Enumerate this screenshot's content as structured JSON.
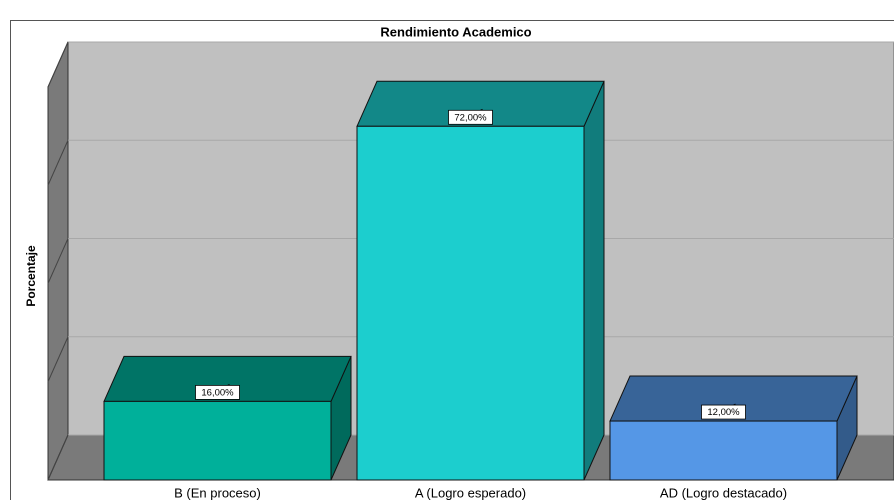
{
  "chart_data": {
    "type": "bar3d",
    "title": "Rendimiento Academico",
    "y_label": "Porcentaje",
    "categories": [
      "B (En proceso)",
      "A (Logro esperado)",
      "AD (Logro destacado)"
    ],
    "values": [
      16,
      72,
      12
    ],
    "value_labels": [
      "16,00%",
      "72,00%",
      "12,00%"
    ],
    "colors": [
      "#00b09a",
      "#1ccece",
      "#5597e6"
    ],
    "ylim": [
      0,
      80
    ],
    "yticks": [
      0,
      20,
      40,
      60,
      80
    ],
    "grid": true
  }
}
